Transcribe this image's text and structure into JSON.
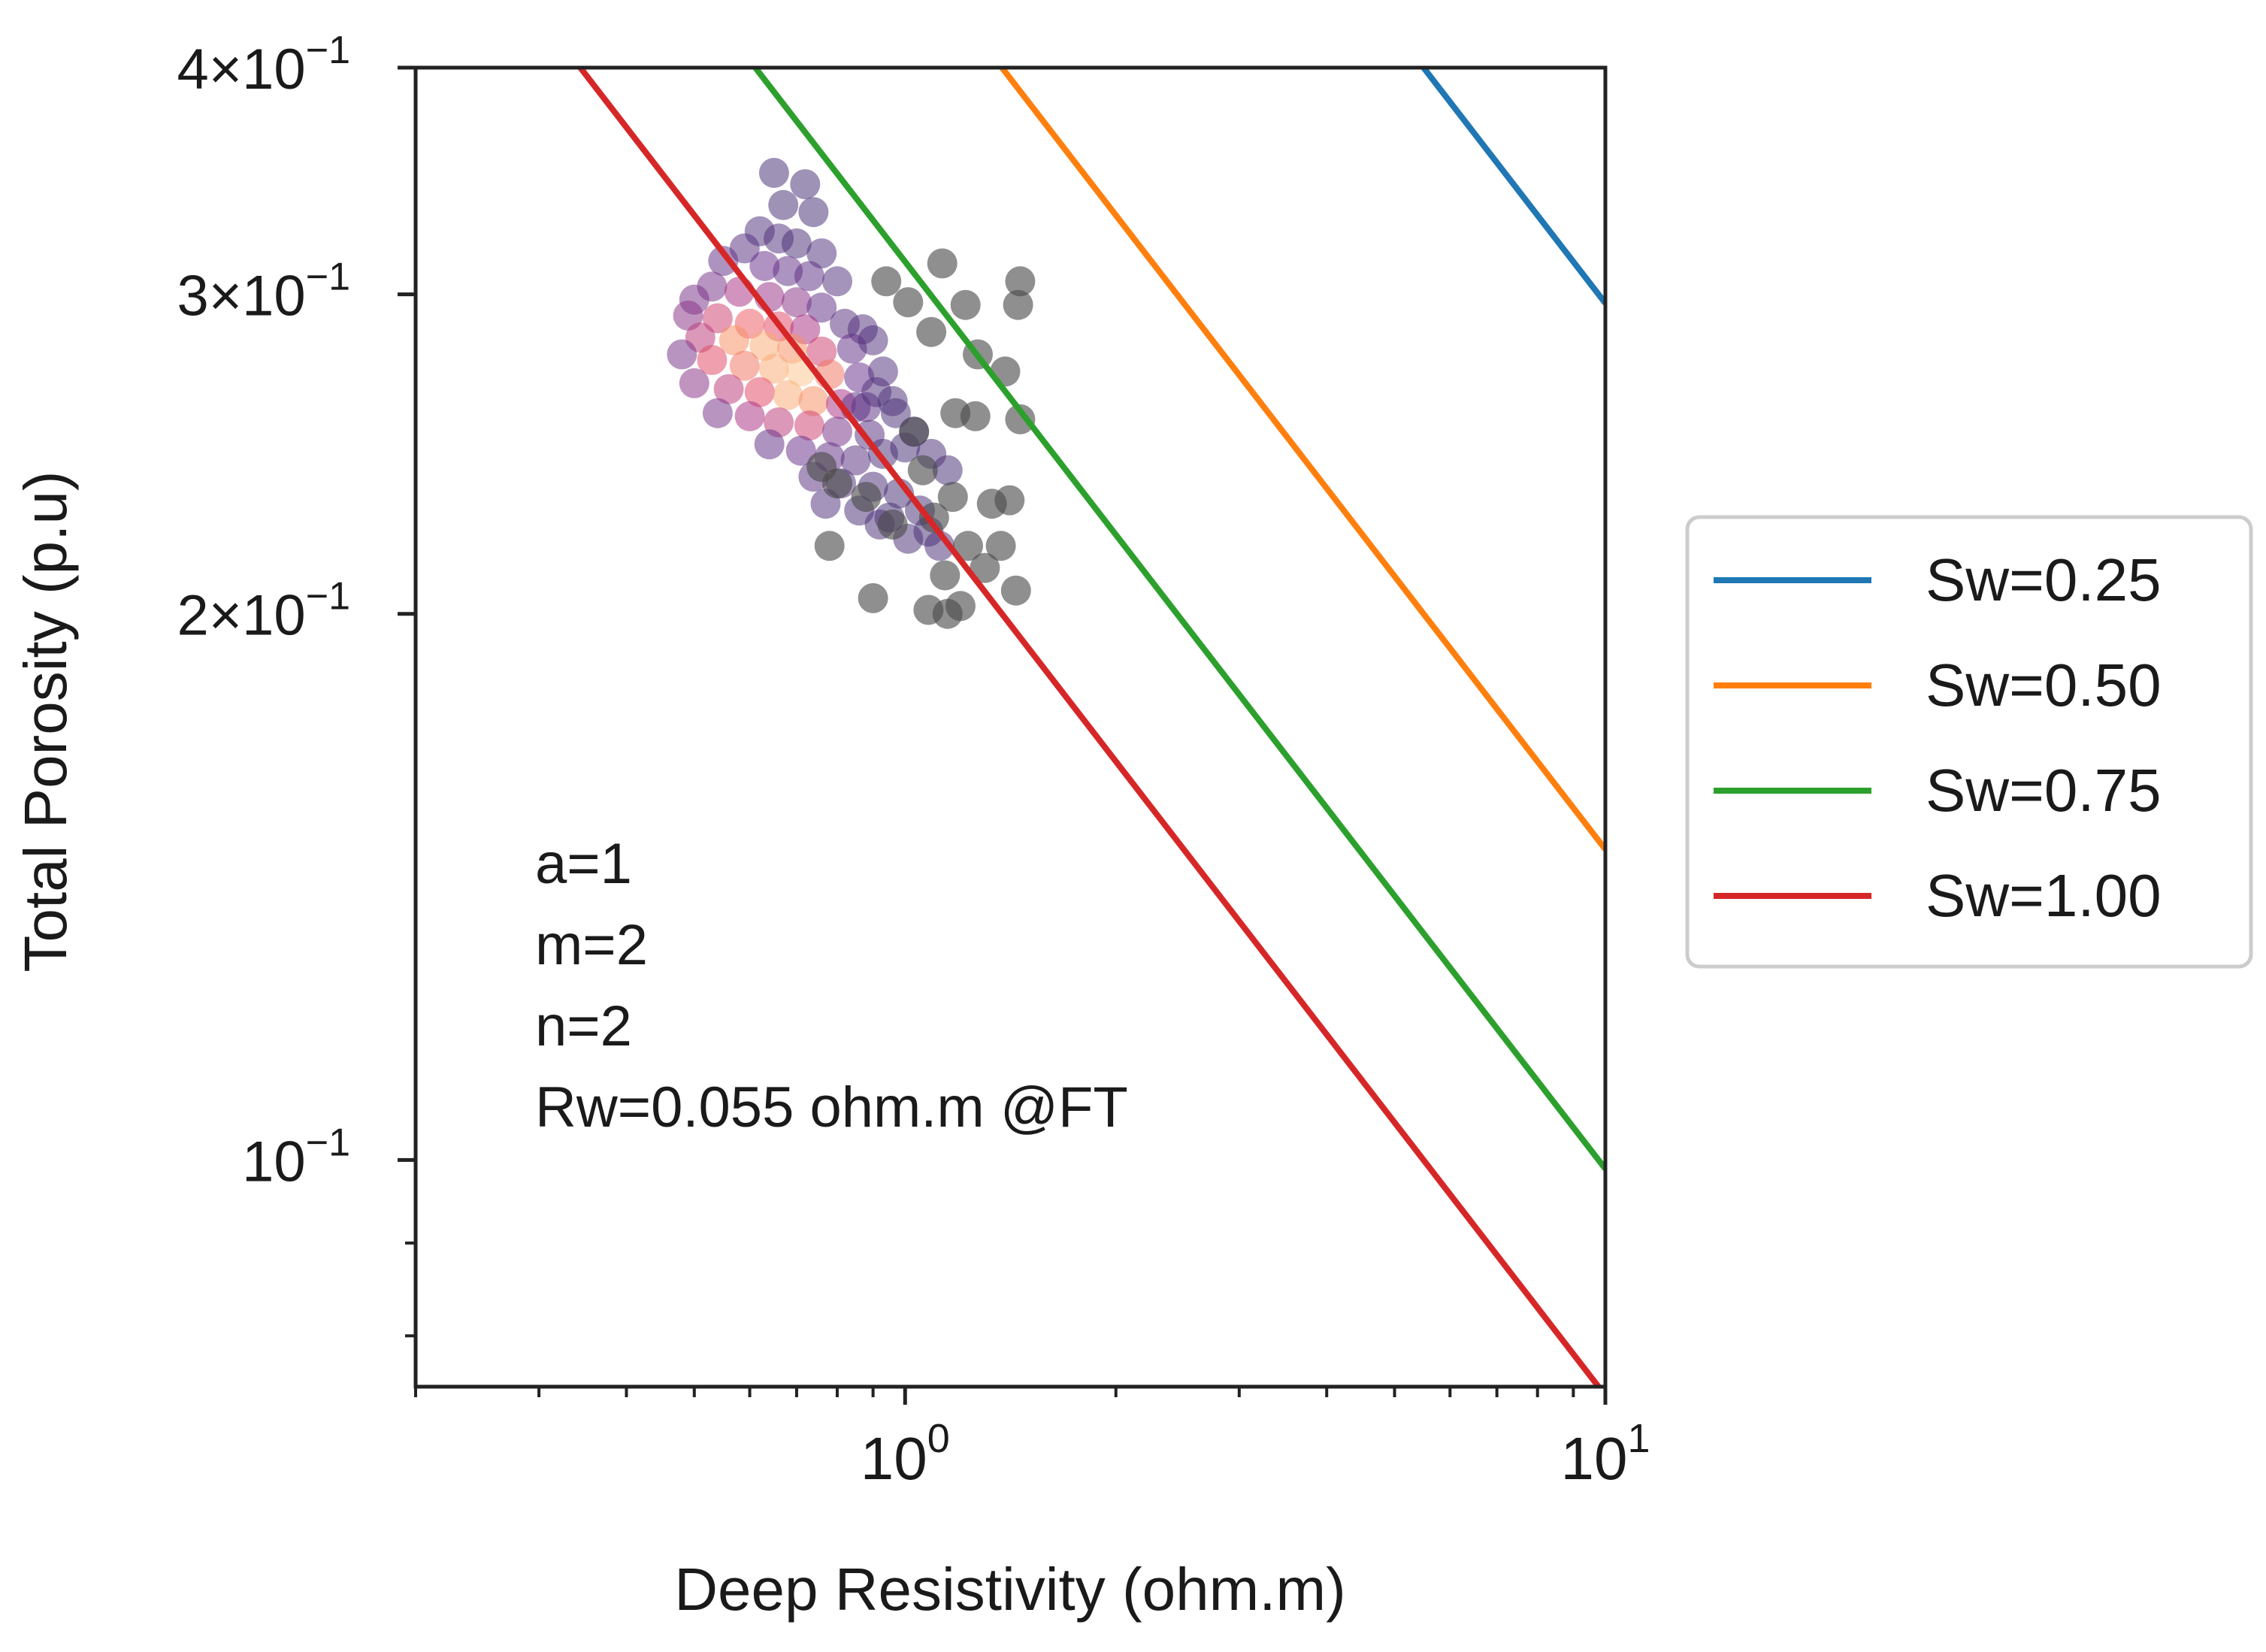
{
  "chart_data": {
    "type": "scatter",
    "title": "",
    "xlabel": "Deep Resistivity (ohm.m)",
    "ylabel": "Total Porosity (p.u)",
    "xscale": "log",
    "yscale": "log",
    "xlim": [
      0.2,
      10
    ],
    "ylim": [
      0.075,
      0.4
    ],
    "grid": false,
    "x_major_ticks": [
      {
        "value": 1,
        "base": "10",
        "exp": "0"
      },
      {
        "value": 10,
        "base": "10",
        "exp": "1"
      }
    ],
    "y_major_ticks": [
      {
        "value": 0.1,
        "mantissa": "",
        "base": "10",
        "exp": "−1"
      },
      {
        "value": 0.2,
        "mantissa": "2×",
        "base": "10",
        "exp": "−1"
      },
      {
        "value": 0.3,
        "mantissa": "3×",
        "base": "10",
        "exp": "−1"
      },
      {
        "value": 0.4,
        "mantissa": "4×",
        "base": "10",
        "exp": "−1"
      }
    ],
    "pickett_model": {
      "a": 1,
      "m": 2,
      "n": 2,
      "Rw": 0.055
    },
    "series": [
      {
        "name": "Sw=0.25",
        "sw": 0.25,
        "color": "#1f77b4"
      },
      {
        "name": "Sw=0.50",
        "sw": 0.5,
        "color": "#ff7f0e"
      },
      {
        "name": "Sw=0.75",
        "sw": 0.75,
        "color": "#2ca02c"
      },
      {
        "name": "Sw=1.00",
        "sw": 1.0,
        "color": "#d62728"
      }
    ],
    "legend_position": "outside-right",
    "annotations": [
      "a=1",
      "m=2",
      "n=2",
      "Rw=0.055 ohm.m @FT"
    ],
    "scatter_points": [
      [
        0.65,
        0.35,
        0.05
      ],
      [
        0.72,
        0.345,
        0.05
      ],
      [
        0.67,
        0.336,
        0.05
      ],
      [
        0.74,
        0.333,
        0.05
      ],
      [
        0.62,
        0.325,
        0.15
      ],
      [
        0.66,
        0.322,
        0.15
      ],
      [
        0.7,
        0.32,
        0.1
      ],
      [
        0.59,
        0.318,
        0.2
      ],
      [
        0.76,
        0.316,
        0.15
      ],
      [
        0.55,
        0.313,
        0.3
      ],
      [
        0.63,
        0.311,
        0.35
      ],
      [
        0.68,
        0.309,
        0.3
      ],
      [
        0.73,
        0.307,
        0.25
      ],
      [
        0.8,
        0.305,
        0.15
      ],
      [
        0.53,
        0.303,
        0.4
      ],
      [
        0.58,
        0.301,
        0.55
      ],
      [
        0.64,
        0.299,
        0.5
      ],
      [
        0.7,
        0.297,
        0.45
      ],
      [
        0.76,
        0.295,
        0.3
      ],
      [
        0.5,
        0.298,
        0.4
      ],
      [
        0.49,
        0.292,
        0.45
      ],
      [
        0.54,
        0.291,
        0.65
      ],
      [
        0.6,
        0.289,
        0.75
      ],
      [
        0.66,
        0.288,
        0.7
      ],
      [
        0.72,
        0.287,
        0.55
      ],
      [
        0.82,
        0.289,
        0.2
      ],
      [
        0.87,
        0.287,
        0.15
      ],
      [
        0.51,
        0.284,
        0.6
      ],
      [
        0.57,
        0.283,
        0.85
      ],
      [
        0.63,
        0.281,
        0.9
      ],
      [
        0.69,
        0.28,
        0.85
      ],
      [
        0.76,
        0.279,
        0.65
      ],
      [
        0.84,
        0.28,
        0.3
      ],
      [
        0.9,
        0.283,
        0.15
      ],
      [
        0.48,
        0.278,
        0.4
      ],
      [
        0.53,
        0.276,
        0.7
      ],
      [
        0.59,
        0.274,
        0.8
      ],
      [
        0.65,
        0.273,
        0.9
      ],
      [
        0.71,
        0.272,
        0.95
      ],
      [
        0.78,
        0.271,
        0.8
      ],
      [
        0.86,
        0.27,
        0.35
      ],
      [
        0.93,
        0.272,
        0.15
      ],
      [
        0.5,
        0.268,
        0.45
      ],
      [
        0.56,
        0.266,
        0.6
      ],
      [
        0.62,
        0.265,
        0.7
      ],
      [
        0.68,
        0.264,
        0.9
      ],
      [
        0.74,
        0.262,
        0.85
      ],
      [
        0.81,
        0.261,
        0.55
      ],
      [
        0.88,
        0.26,
        0.25
      ],
      [
        0.96,
        0.262,
        0.1
      ],
      [
        0.54,
        0.258,
        0.4
      ],
      [
        0.6,
        0.257,
        0.55
      ],
      [
        0.66,
        0.255,
        0.6
      ],
      [
        0.73,
        0.254,
        0.65
      ],
      [
        0.8,
        0.252,
        0.4
      ],
      [
        0.89,
        0.251,
        0.2
      ],
      [
        0.64,
        0.248,
        0.3
      ],
      [
        0.71,
        0.246,
        0.35
      ],
      [
        0.78,
        0.244,
        0.3
      ],
      [
        0.85,
        0.243,
        0.2
      ],
      [
        0.93,
        0.245,
        0.1
      ],
      [
        1.0,
        0.247,
        0.05
      ],
      [
        0.74,
        0.238,
        0.2
      ],
      [
        0.81,
        0.236,
        0.15
      ],
      [
        0.9,
        0.235,
        0.1
      ],
      [
        0.98,
        0.233,
        0.05
      ],
      [
        0.77,
        0.23,
        0.15
      ],
      [
        0.86,
        0.228,
        0.1
      ],
      [
        0.95,
        0.226,
        0.05
      ],
      [
        1.05,
        0.228,
        0.05
      ],
      [
        0.92,
        0.224,
        0.1
      ],
      [
        1.01,
        0.22,
        0.1
      ],
      [
        1.08,
        0.222,
        0.05
      ],
      [
        1.12,
        0.218,
        0.1
      ],
      [
        0.85,
        0.26,
        0.25
      ],
      [
        0.91,
        0.265,
        0.15
      ],
      [
        0.97,
        0.258,
        0.1
      ],
      [
        1.03,
        0.252,
        0.1
      ],
      [
        1.09,
        0.245,
        0.1
      ],
      [
        1.15,
        0.24,
        0.05
      ],
      [
        0.94,
        0.305,
        0.0
      ],
      [
        1.01,
        0.297,
        0.0
      ],
      [
        1.13,
        0.312,
        0.0
      ],
      [
        1.09,
        0.286,
        0.0
      ],
      [
        1.22,
        0.296,
        0.0
      ],
      [
        1.27,
        0.278,
        0.0
      ],
      [
        1.18,
        0.258,
        0.0
      ],
      [
        1.26,
        0.257,
        0.0
      ],
      [
        1.46,
        0.305,
        0.0
      ],
      [
        1.45,
        0.296,
        0.0
      ],
      [
        1.39,
        0.272,
        0.0
      ],
      [
        1.46,
        0.256,
        0.0
      ],
      [
        1.03,
        0.252,
        0.0
      ],
      [
        1.06,
        0.24,
        0.0
      ],
      [
        1.1,
        0.226,
        0.0
      ],
      [
        1.17,
        0.232,
        0.0
      ],
      [
        1.33,
        0.23,
        0.0
      ],
      [
        1.41,
        0.231,
        0.0
      ],
      [
        1.37,
        0.218,
        0.0
      ],
      [
        1.3,
        0.212,
        0.0
      ],
      [
        1.44,
        0.206,
        0.0
      ],
      [
        1.14,
        0.21,
        0.0
      ],
      [
        1.2,
        0.202,
        0.0
      ],
      [
        1.08,
        0.201,
        0.0
      ],
      [
        0.9,
        0.204,
        0.0
      ],
      [
        0.78,
        0.218,
        0.0
      ],
      [
        0.8,
        0.236,
        0.0
      ],
      [
        0.88,
        0.232,
        0.0
      ],
      [
        0.96,
        0.224,
        0.0
      ],
      [
        0.76,
        0.241,
        0.0
      ],
      [
        1.23,
        0.218,
        0.0
      ],
      [
        1.15,
        0.2,
        0.0
      ]
    ]
  }
}
